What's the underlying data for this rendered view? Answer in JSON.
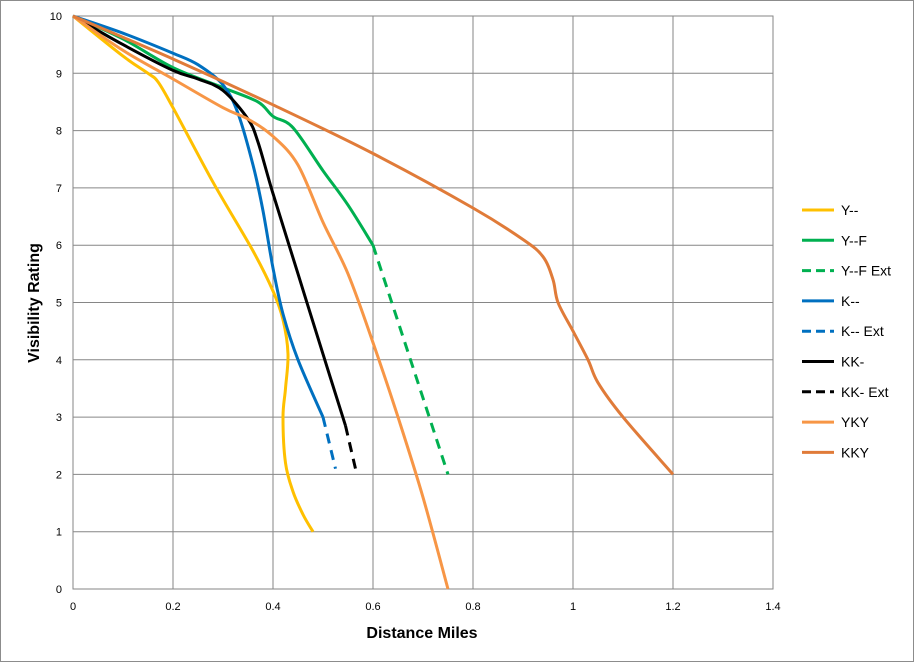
{
  "chart_data": {
    "type": "line",
    "title": "",
    "xlabel": "Distance Miles",
    "ylabel": "Visibility Rating",
    "xlim": [
      0,
      1.4
    ],
    "ylim": [
      0,
      10
    ],
    "xticks": [
      0,
      0.2,
      0.4,
      0.6,
      0.8,
      1,
      1.2,
      1.4
    ],
    "yticks": [
      0,
      1,
      2,
      3,
      4,
      5,
      6,
      7,
      8,
      9,
      10
    ],
    "xtick_labels": [
      "0",
      "0.2",
      "0.4",
      "0.6",
      "0.8",
      "1",
      "1.2",
      "1.4"
    ],
    "ytick_labels": [
      "0",
      "1",
      "2",
      "3",
      "4",
      "5",
      "6",
      "7",
      "8",
      "9",
      "10"
    ],
    "grid": true,
    "legend_position": "right",
    "series": [
      {
        "name": "Y--",
        "color": "#FFC000",
        "dash": false,
        "x": [
          0,
          0.1,
          0.15,
          0.17,
          0.2,
          0.28,
          0.36,
          0.4,
          0.42,
          0.43,
          0.425,
          0.42,
          0.425,
          0.44,
          0.46,
          0.48
        ],
        "y": [
          10,
          9.3,
          9.0,
          8.85,
          8.4,
          7.1,
          5.9,
          5.2,
          4.7,
          4.1,
          3.5,
          3.0,
          2.2,
          1.7,
          1.3,
          1.0
        ]
      },
      {
        "name": "Y--F",
        "color": "#00B050",
        "dash": false,
        "x": [
          0,
          0.1,
          0.2,
          0.3,
          0.37,
          0.4,
          0.44,
          0.5,
          0.55,
          0.6
        ],
        "y": [
          10,
          9.6,
          9.1,
          8.75,
          8.5,
          8.25,
          8.05,
          7.3,
          6.7,
          6.0
        ]
      },
      {
        "name": "Y--F Ext",
        "color": "#00B050",
        "dash": true,
        "x": [
          0.6,
          0.75
        ],
        "y": [
          6.0,
          2.0
        ]
      },
      {
        "name": "K--",
        "color": "#0070C0",
        "dash": false,
        "x": [
          0,
          0.1,
          0.2,
          0.25,
          0.3,
          0.33,
          0.36,
          0.38,
          0.4,
          0.42,
          0.45,
          0.5
        ],
        "y": [
          10,
          9.7,
          9.35,
          9.15,
          8.8,
          8.3,
          7.4,
          6.6,
          5.6,
          4.8,
          4.0,
          3.0
        ]
      },
      {
        "name": "K-- Ext",
        "color": "#0070C0",
        "dash": true,
        "x": [
          0.5,
          0.525
        ],
        "y": [
          3.0,
          2.1
        ]
      },
      {
        "name": "KK-",
        "color": "#000000",
        "dash": false,
        "x": [
          0,
          0.1,
          0.2,
          0.25,
          0.3,
          0.35,
          0.37,
          0.4,
          0.45,
          0.5,
          0.545
        ],
        "y": [
          10,
          9.5,
          9.05,
          8.9,
          8.7,
          8.2,
          7.8,
          6.9,
          5.5,
          4.1,
          2.85
        ]
      },
      {
        "name": "KK- Ext",
        "color": "#000000",
        "dash": true,
        "x": [
          0.545,
          0.565
        ],
        "y": [
          2.85,
          2.1
        ]
      },
      {
        "name": "YKY",
        "color": "#F79646",
        "dash": false,
        "x": [
          0,
          0.1,
          0.2,
          0.3,
          0.35,
          0.4,
          0.45,
          0.5,
          0.55,
          0.6,
          0.65,
          0.7,
          0.75
        ],
        "y": [
          10,
          9.4,
          8.9,
          8.4,
          8.2,
          7.9,
          7.4,
          6.4,
          5.5,
          4.3,
          3.0,
          1.6,
          0.0
        ]
      },
      {
        "name": "KKY",
        "color": "#E07B39",
        "dash": false,
        "x": [
          0,
          0.2,
          0.4,
          0.6,
          0.8,
          0.9,
          0.94,
          0.96,
          0.97,
          1.0,
          1.03,
          1.05,
          1.1,
          1.2
        ],
        "y": [
          10,
          9.25,
          8.45,
          7.6,
          6.65,
          6.1,
          5.8,
          5.4,
          5.0,
          4.5,
          4.0,
          3.6,
          3.0,
          2.0
        ]
      }
    ]
  }
}
